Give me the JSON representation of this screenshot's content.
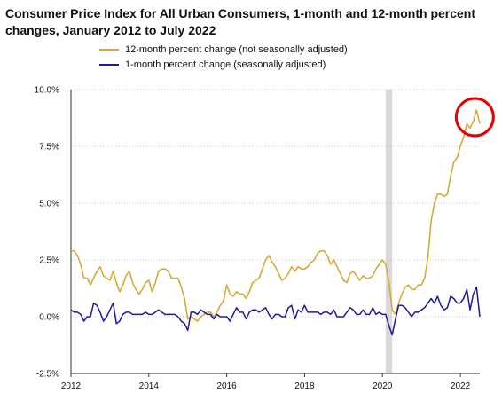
{
  "chart_data": {
    "type": "line",
    "title": "Consumer Price Index for All Urban Consumers, 1-month and 12-month percent changes, January 2012 to July 2022",
    "xlabel": "",
    "ylabel": "",
    "x_start": "2012-01",
    "x_end": "2022-07",
    "x_ticks": [
      "2012",
      "2014",
      "2016",
      "2018",
      "2020",
      "2022"
    ],
    "y_ticks": [
      "-2.5%",
      "0.0%",
      "2.5%",
      "5.0%",
      "7.5%",
      "10.0%"
    ],
    "ylim": [
      -2.5,
      10.0
    ],
    "grid": true,
    "legend_position": "top",
    "recession_shading": {
      "start": "2020-02",
      "end": "2020-04",
      "color": "#d9d9d9"
    },
    "highlight_circle": {
      "at": "2022-06",
      "value": 9.1,
      "color": "#e60000"
    },
    "series": [
      {
        "name": "12-month percent change (not seasonally adjusted)",
        "color": "#d4aa3a",
        "values": [
          2.9,
          2.9,
          2.7,
          2.3,
          1.7,
          1.7,
          1.4,
          1.7,
          2.0,
          2.2,
          1.8,
          1.7,
          1.6,
          2.0,
          1.5,
          1.1,
          1.4,
          1.8,
          2.0,
          1.5,
          1.2,
          1.0,
          1.2,
          1.5,
          1.6,
          1.1,
          1.5,
          2.0,
          2.1,
          2.1,
          2.0,
          1.7,
          1.7,
          1.7,
          1.3,
          0.8,
          -0.1,
          0.0,
          -0.1,
          -0.2,
          0.0,
          0.1,
          0.2,
          0.2,
          0.0,
          0.2,
          0.5,
          0.7,
          1.4,
          1.0,
          0.9,
          1.1,
          1.0,
          1.0,
          0.8,
          1.1,
          1.5,
          1.6,
          1.7,
          2.1,
          2.5,
          2.7,
          2.4,
          2.2,
          1.9,
          1.6,
          1.7,
          1.9,
          2.2,
          2.0,
          2.2,
          2.1,
          2.1,
          2.2,
          2.4,
          2.5,
          2.8,
          2.9,
          2.9,
          2.7,
          2.3,
          2.5,
          2.2,
          1.9,
          1.6,
          1.5,
          1.9,
          2.0,
          1.8,
          1.6,
          1.8,
          1.7,
          1.7,
          1.8,
          2.1,
          2.3,
          2.5,
          2.3,
          1.5,
          0.3,
          0.1,
          0.6,
          1.0,
          1.3,
          1.4,
          1.2,
          1.2,
          1.4,
          1.4,
          1.7,
          2.6,
          4.2,
          5.0,
          5.4,
          5.4,
          5.3,
          5.4,
          6.2,
          6.8,
          7.0,
          7.5,
          7.9,
          8.5,
          8.3,
          8.6,
          9.1,
          8.5
        ]
      },
      {
        "name": "1-month percent change (seasonally adjusted)",
        "color": "#1f1a99",
        "values": [
          0.3,
          0.2,
          0.2,
          0.1,
          -0.2,
          0.0,
          0.0,
          0.6,
          0.5,
          0.2,
          -0.2,
          0.0,
          0.3,
          0.6,
          -0.3,
          -0.2,
          0.1,
          0.2,
          0.2,
          0.1,
          0.1,
          0.1,
          0.1,
          0.2,
          0.1,
          0.1,
          0.2,
          0.3,
          0.2,
          0.1,
          0.1,
          0.1,
          0.1,
          0.0,
          -0.2,
          -0.3,
          -0.6,
          0.2,
          0.2,
          0.1,
          0.3,
          0.2,
          0.1,
          0.1,
          -0.1,
          0.1,
          0.0,
          0.0,
          0.0,
          -0.2,
          0.1,
          0.4,
          0.2,
          0.2,
          -0.1,
          0.2,
          0.3,
          0.3,
          0.2,
          0.3,
          0.4,
          0.1,
          -0.1,
          0.1,
          0.1,
          0.0,
          0.0,
          0.4,
          0.5,
          -0.1,
          0.3,
          0.2,
          0.5,
          0.2,
          0.2,
          0.2,
          0.2,
          0.1,
          0.2,
          0.2,
          0.1,
          0.3,
          0.0,
          0.0,
          0.0,
          0.2,
          0.4,
          0.3,
          0.1,
          0.1,
          0.3,
          0.1,
          0.1,
          0.4,
          0.1,
          0.2,
          0.1,
          0.1,
          -0.4,
          -0.8,
          -0.1,
          0.5,
          0.5,
          0.4,
          0.2,
          0.0,
          0.2,
          0.2,
          0.3,
          0.4,
          0.6,
          0.8,
          0.6,
          0.9,
          0.5,
          0.3,
          0.4,
          0.9,
          0.8,
          0.6,
          0.6,
          0.8,
          1.2,
          0.3,
          1.0,
          1.3,
          0.0
        ]
      }
    ]
  }
}
